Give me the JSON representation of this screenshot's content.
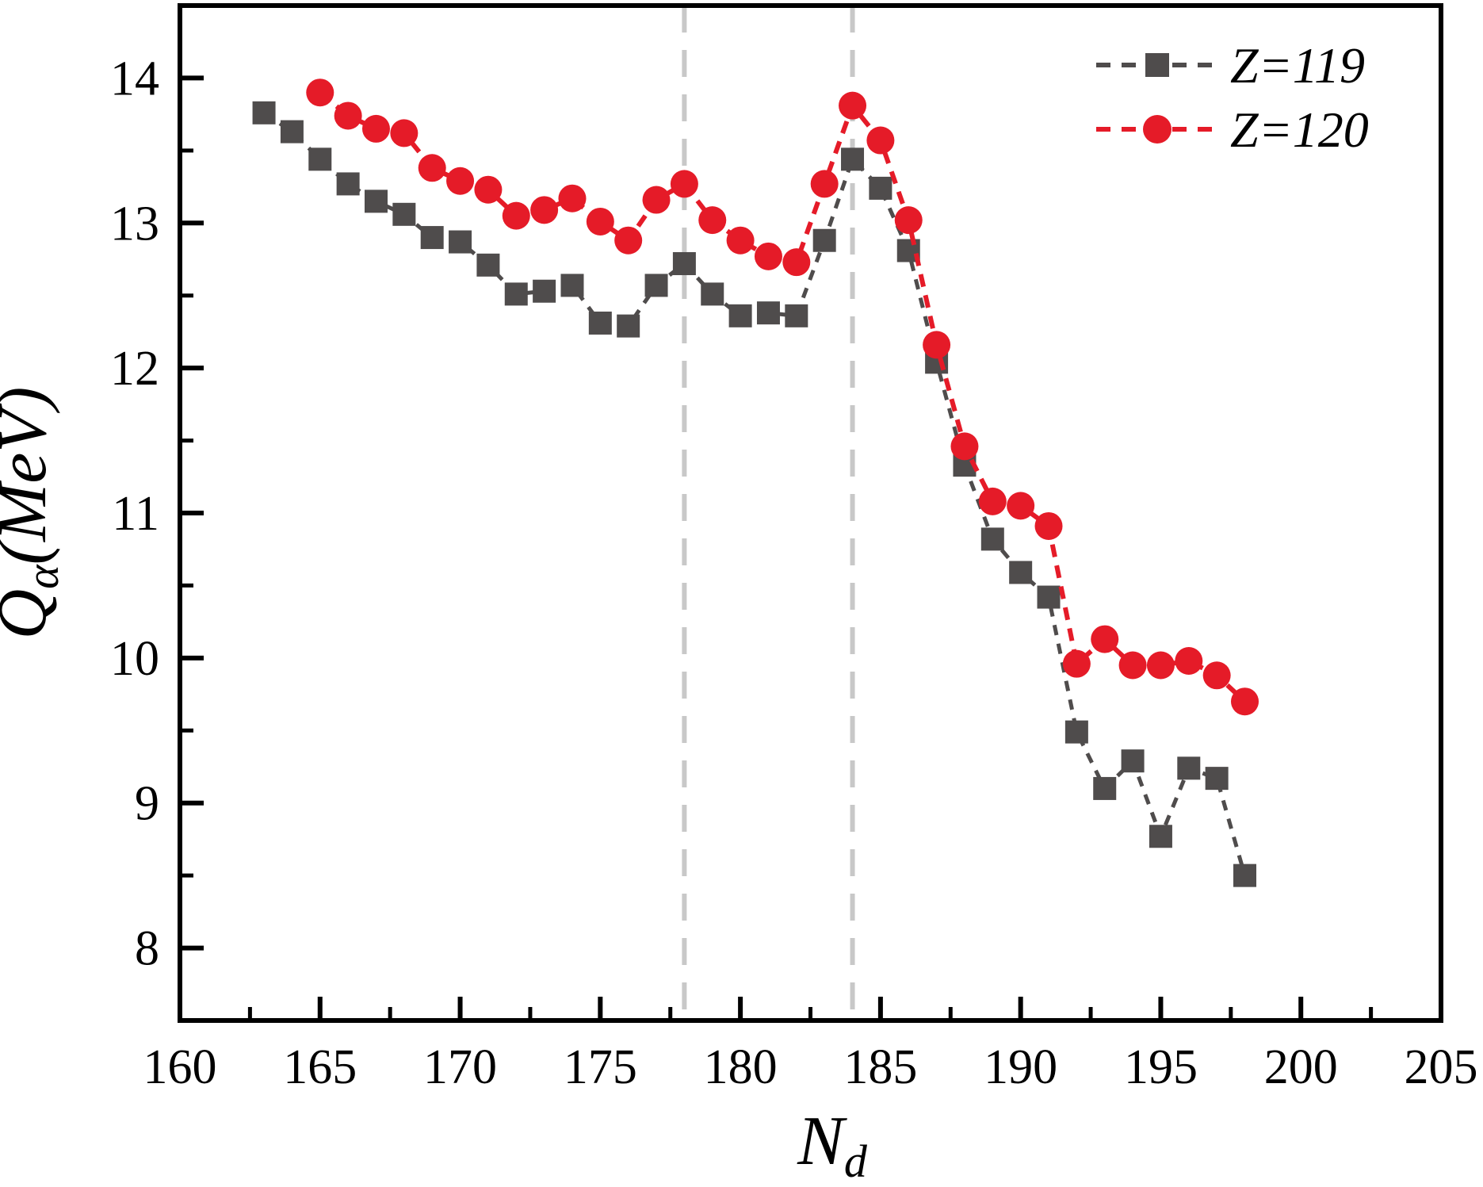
{
  "chart_data": {
    "type": "line",
    "title": "",
    "xlabel": {
      "base": "N",
      "sub": "d"
    },
    "ylabel": {
      "base": "Q",
      "sub": "α",
      "rest": "(MeV)"
    },
    "xlim": [
      160,
      205
    ],
    "ylim": [
      7.5,
      14.5
    ],
    "x_major_ticks": [
      160,
      165,
      170,
      175,
      180,
      185,
      190,
      195,
      200,
      205
    ],
    "x_minor_step": 2.5,
    "y_major_ticks": [
      8,
      9,
      10,
      11,
      12,
      13,
      14
    ],
    "y_minor_step": 0.5,
    "grid": "off",
    "reference_lines_x": [
      178,
      184
    ],
    "legend_position": "top-right-inside",
    "colors": {
      "axis": "#000000",
      "reference_line": "#c8c8c8",
      "z119": "#4f4c4c",
      "z120": "#e51b28"
    },
    "series": [
      {
        "name": "Z=119",
        "marker": "square",
        "color": "#4f4c4c",
        "x": [
          163,
          164,
          165,
          166,
          167,
          168,
          169,
          170,
          171,
          172,
          173,
          174,
          175,
          176,
          177,
          178,
          179,
          180,
          181,
          182,
          183,
          184,
          185,
          186,
          187,
          188,
          189,
          190,
          191,
          192,
          193,
          194,
          195,
          196,
          197,
          198
        ],
        "y": [
          13.76,
          13.63,
          13.44,
          13.27,
          13.15,
          13.06,
          12.9,
          12.87,
          12.71,
          12.51,
          12.53,
          12.57,
          12.31,
          12.29,
          12.57,
          12.72,
          12.51,
          12.36,
          12.38,
          12.36,
          12.88,
          13.44,
          13.24,
          12.81,
          12.04,
          11.33,
          10.82,
          10.59,
          10.42,
          9.49,
          9.1,
          9.29,
          8.77,
          9.24,
          9.17,
          8.5
        ]
      },
      {
        "name": "Z=120",
        "marker": "circle",
        "color": "#e51b28",
        "x": [
          165,
          166,
          167,
          168,
          169,
          170,
          171,
          172,
          173,
          174,
          175,
          176,
          177,
          178,
          179,
          180,
          181,
          182,
          183,
          184,
          185,
          186,
          187,
          188,
          189,
          190,
          191,
          192,
          193,
          194,
          195,
          196,
          197,
          198
        ],
        "y": [
          13.9,
          13.74,
          13.65,
          13.62,
          13.38,
          13.29,
          13.23,
          13.05,
          13.09,
          13.17,
          13.01,
          12.88,
          13.16,
          13.27,
          13.02,
          12.88,
          12.77,
          12.73,
          13.27,
          13.81,
          13.57,
          13.02,
          12.16,
          11.46,
          11.08,
          11.05,
          10.91,
          9.96,
          10.13,
          9.95,
          9.95,
          9.98,
          9.88,
          9.7
        ]
      }
    ]
  }
}
